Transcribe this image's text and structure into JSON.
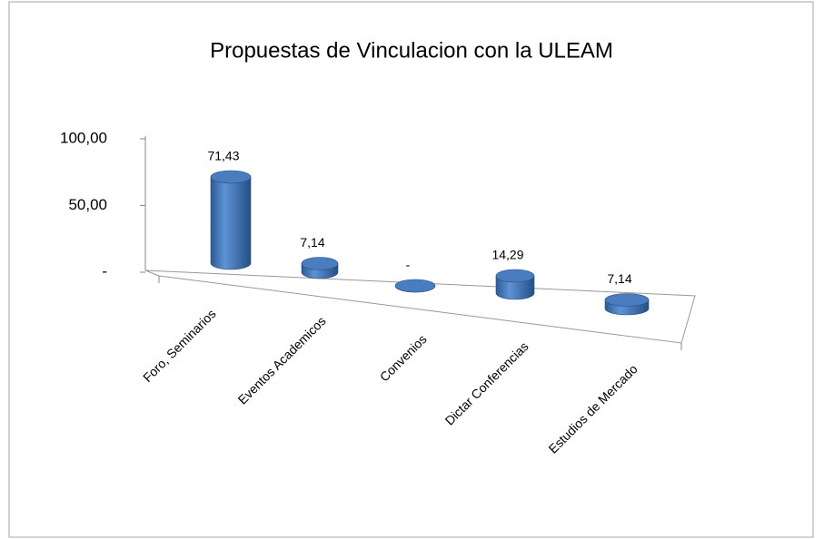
{
  "chart_data": {
    "type": "bar",
    "title": "Propuestas de Vinculacion con la ULEAM",
    "categories": [
      "Foro, Seminarios",
      "Eventos Academicos",
      "Convenios",
      "Dictar Conferencias",
      "Estudios de Mercado"
    ],
    "values": [
      71.43,
      7.14,
      0,
      14.29,
      7.14
    ],
    "value_labels": [
      "71,43",
      "7,14",
      "-",
      "14,29",
      "7,14"
    ],
    "color": "#4f81bd",
    "ylim": [
      0,
      100
    ],
    "yticks": [
      {
        "value": 0,
        "label": "-"
      },
      {
        "value": 50,
        "label": "50,00"
      },
      {
        "value": 100,
        "label": "100,00"
      }
    ]
  }
}
